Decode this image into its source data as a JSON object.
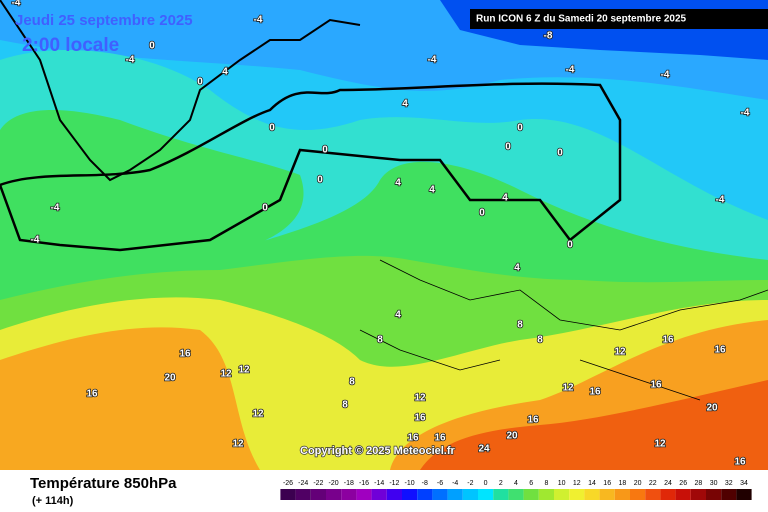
{
  "header": {
    "date": "Jeudi 25 septembre 2025",
    "time": "2:00 locale",
    "run": "Run ICON 6 Z du Samedi 20 septembre 2025"
  },
  "copyright": "Copyright © 2025 Meteociel.fr",
  "footer": {
    "title": "Température 850hPa",
    "lead": "(+ 114h)"
  },
  "legend": {
    "ticks": [
      -26,
      -24,
      -22,
      -20,
      -18,
      -16,
      -14,
      -12,
      -10,
      -8,
      -6,
      -4,
      -2,
      0,
      2,
      4,
      6,
      8,
      10,
      12,
      14,
      16,
      18,
      20,
      22,
      24,
      26,
      28,
      30,
      32,
      34
    ],
    "colors": [
      "#3c0050",
      "#500064",
      "#640078",
      "#78008c",
      "#8c00a0",
      "#a000c0",
      "#7000d8",
      "#4000f0",
      "#1010ff",
      "#0040ff",
      "#0070ff",
      "#00a0ff",
      "#00c4ff",
      "#00e4ff",
      "#20e0a0",
      "#40e070",
      "#70e040",
      "#a0e830",
      "#d0f030",
      "#f0f030",
      "#f8d828",
      "#f8b820",
      "#f89818",
      "#f87810",
      "#f05010",
      "#e02808",
      "#c81008",
      "#a00808",
      "#780404",
      "#500000",
      "#200000"
    ]
  },
  "contour_labels": [
    -4,
    -4,
    -8,
    -4,
    -4,
    -4,
    -4,
    -4,
    0,
    -4,
    0,
    4,
    0,
    0,
    0,
    0,
    4,
    0,
    0,
    0,
    4,
    4,
    0,
    4,
    0,
    -4,
    -4,
    4,
    4,
    8,
    8,
    8,
    12,
    16,
    16,
    16,
    20,
    16,
    12,
    12,
    12,
    12,
    8,
    8,
    12,
    16,
    16,
    16,
    20,
    24,
    12,
    16,
    16,
    20,
    16,
    12,
    16
  ]
}
